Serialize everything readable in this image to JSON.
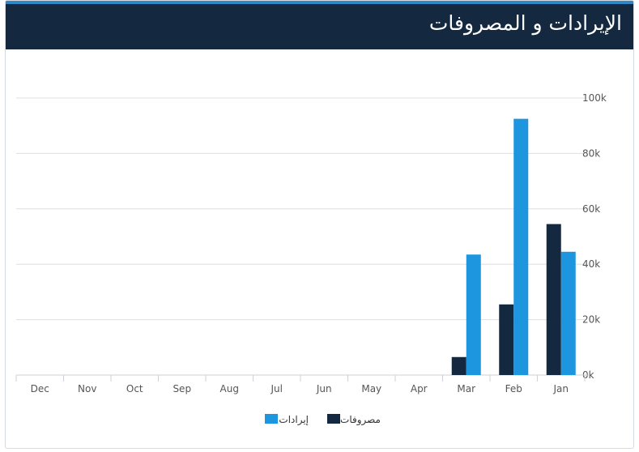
{
  "header": {
    "title": "الإيرادات و المصروفات"
  },
  "colors": {
    "revenue": "#1e96df",
    "expenses": "#14283f",
    "header_bg": "#14283f",
    "header_accent": "#2f86c9"
  },
  "chart_data": {
    "type": "bar",
    "title": "",
    "xlabel": "",
    "ylabel": "",
    "categories": [
      "Jan",
      "Feb",
      "Mar",
      "Apr",
      "May",
      "Jun",
      "Jul",
      "Aug",
      "Sep",
      "Oct",
      "Nov",
      "Dec"
    ],
    "x_axis_direction": "right-to-left",
    "y_axis_position": "right",
    "ylim": [
      0,
      100000
    ],
    "yticks": [
      {
        "value": 0,
        "label": "0k"
      },
      {
        "value": 20000,
        "label": "20k"
      },
      {
        "value": 40000,
        "label": "40k"
      },
      {
        "value": 60000,
        "label": "60k"
      },
      {
        "value": 80000,
        "label": "80k"
      },
      {
        "value": 100000,
        "label": "100k"
      }
    ],
    "grid": true,
    "legend_position": "bottom",
    "series": [
      {
        "name": "مصروفات",
        "color": "#14283f",
        "values": [
          54500,
          25500,
          6500,
          0,
          0,
          0,
          0,
          0,
          0,
          0,
          0,
          0
        ]
      },
      {
        "name": "إيرادات",
        "color": "#1e96df",
        "values": [
          44500,
          92500,
          43500,
          0,
          0,
          0,
          0,
          0,
          0,
          0,
          0,
          0
        ]
      }
    ]
  }
}
